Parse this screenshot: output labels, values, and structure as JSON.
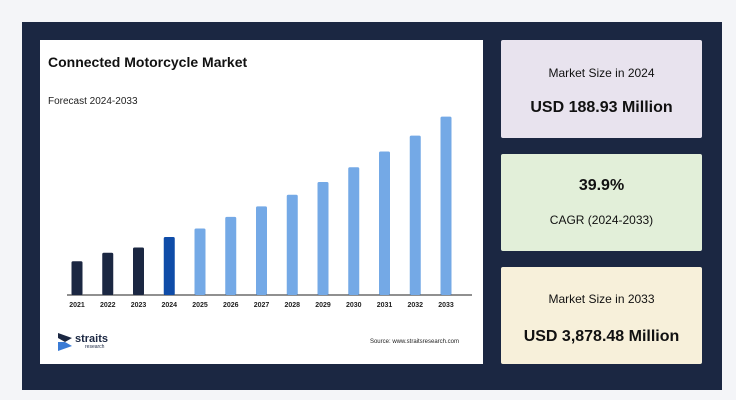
{
  "chart_data": {
    "type": "bar",
    "title": "Connected Motorcycle Market",
    "subtitle": "Forecast 2024-2033",
    "categories": [
      "2021",
      "2022",
      "2023",
      "2024",
      "2025",
      "2026",
      "2027",
      "2028",
      "2029",
      "2030",
      "2031",
      "2032",
      "2033"
    ],
    "values": [
      32,
      40,
      45,
      55,
      63,
      74,
      84,
      95,
      107,
      121,
      136,
      151,
      169
    ],
    "ylim": [
      0,
      180
    ],
    "bar_colors": [
      "#1b2742",
      "#1b2742",
      "#1b2742",
      "#0f4ca8",
      "#74a9e6",
      "#74a9e6",
      "#74a9e6",
      "#74a9e6",
      "#74a9e6",
      "#74a9e6",
      "#74a9e6",
      "#74a9e6",
      "#74a9e6"
    ],
    "grid": false,
    "legend": "none"
  },
  "branding": {
    "logo_name": "straits",
    "logo_sub": "research",
    "source": "Source: www.straitsresearch.com"
  },
  "cards": {
    "size_2024_label": "Market Size in 2024",
    "size_2024_value": "USD 188.93 Million",
    "cagr_value": "39.9%",
    "cagr_label": "CAGR (2024-2033)",
    "size_2033_label": "Market Size in 2033",
    "size_2033_value": "USD 3,878.48 Million"
  },
  "colors": {
    "frame": "#1b2742",
    "card_1": "#e8e3ee",
    "card_2": "#e2efd9",
    "card_3": "#f7f0da"
  }
}
